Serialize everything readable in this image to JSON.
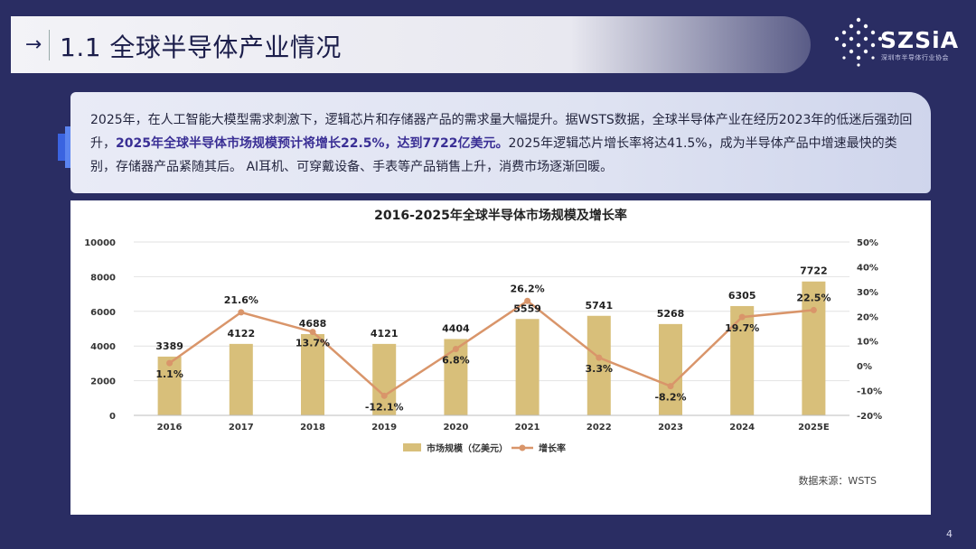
{
  "header": {
    "title": "1.1 全球半导体产业情况",
    "logo_text": "SZSiA",
    "logo_sub": "深圳市半导体行业协会"
  },
  "intro": {
    "part1": "2025年，在人工智能大模型需求刺激下，逻辑芯片和存储器产品的需求量大幅提升。据WSTS数据，全球半导体产业在经历2023年的低迷后强劲回升，",
    "highlight": "2025年全球半导体市场规模预计将增长22.5%，达到7722亿美元。",
    "part2": "2025年逻辑芯片增长率将达41.5%，成为半导体产品中增速最快的类别，存储器产品紧随其后。 AI耳机、可穿戴设备、手表等产品销售上升，消费市场逐渐回暖。"
  },
  "colors": {
    "bar": "#d8bf7a",
    "line": "#d9956a",
    "highlight": "#3a2f95"
  },
  "chart_data": {
    "type": "bar",
    "title": "2016-2025年全球半导体市场规模及增长率",
    "categories": [
      "2016",
      "2017",
      "2018",
      "2019",
      "2020",
      "2021",
      "2022",
      "2023",
      "2024",
      "2025E"
    ],
    "series": [
      {
        "name": "市场规模（亿美元）",
        "type": "bar",
        "axis": "left",
        "values": [
          3389,
          4122,
          4688,
          4121,
          4404,
          5559,
          5741,
          5268,
          6305,
          7722
        ]
      },
      {
        "name": "增长率",
        "type": "line",
        "axis": "right",
        "values": [
          1.1,
          21.6,
          13.7,
          -12.1,
          6.8,
          26.2,
          3.3,
          -8.2,
          19.7,
          22.5
        ]
      }
    ],
    "bar_labels": [
      "3389",
      "4122",
      "4688",
      "4121",
      "4404",
      "5559",
      "5741",
      "5268",
      "6305",
      "7722"
    ],
    "line_labels": [
      "1.1%",
      "21.6%",
      "13.7%",
      "-12.1%",
      "6.8%",
      "26.2%",
      "3.3%",
      "-8.2%",
      "19.7%",
      "22.5%"
    ],
    "y_left": {
      "min": 0,
      "max": 10000,
      "ticks": [
        0,
        2000,
        4000,
        6000,
        8000,
        10000
      ]
    },
    "y_right": {
      "min": -20,
      "max": 50,
      "ticks": [
        "-20%",
        "-10%",
        "0%",
        "10%",
        "20%",
        "30%",
        "40%",
        "50%"
      ]
    },
    "legend": [
      "市场规模（亿美元）",
      "增长率"
    ],
    "source": "数据来源：WSTS"
  },
  "footer": {
    "page": "4"
  }
}
